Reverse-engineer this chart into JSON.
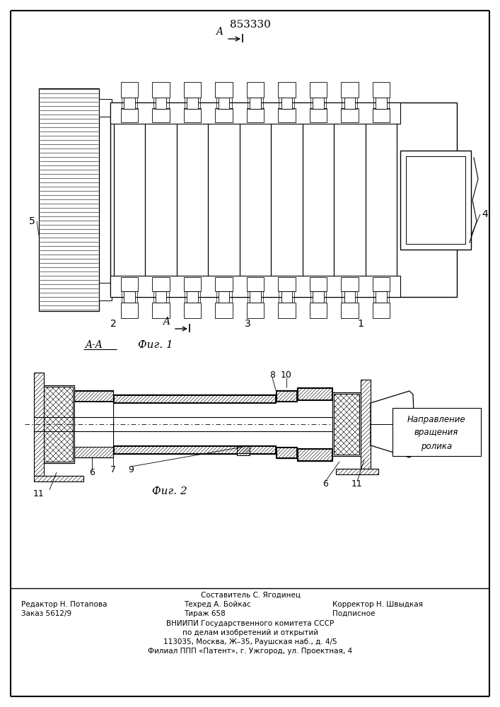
{
  "patent_number": "853330",
  "fig1_label": "Фиг. 1",
  "fig2_label": "Фиг. 2",
  "section_label": "A-A",
  "footer_line1": "Составитель С. Ягодинец",
  "footer_line2_left": "Редактор Н. Потапова",
  "footer_line2_mid": "Техред А. Бойкас",
  "footer_line2_right": "Корректор Н. Швыдкая",
  "footer_line3_left": "Заказ 5612/9",
  "footer_line3_mid": "Тираж 658",
  "footer_line3_right": "Подписное",
  "footer_vniiipi": "ВНИИПИ Государственного комитета СССР",
  "footer_vniiipi2": "по делам изобретений и открытий",
  "footer_addr1": "113035, Москва, Ж–35, Раушская наб., д. 4/5",
  "footer_addr2": "Филиал ППП «Патент», г. Ужгород, ул. Проектная, 4",
  "bg_color": "#ffffff",
  "line_color": "#000000"
}
